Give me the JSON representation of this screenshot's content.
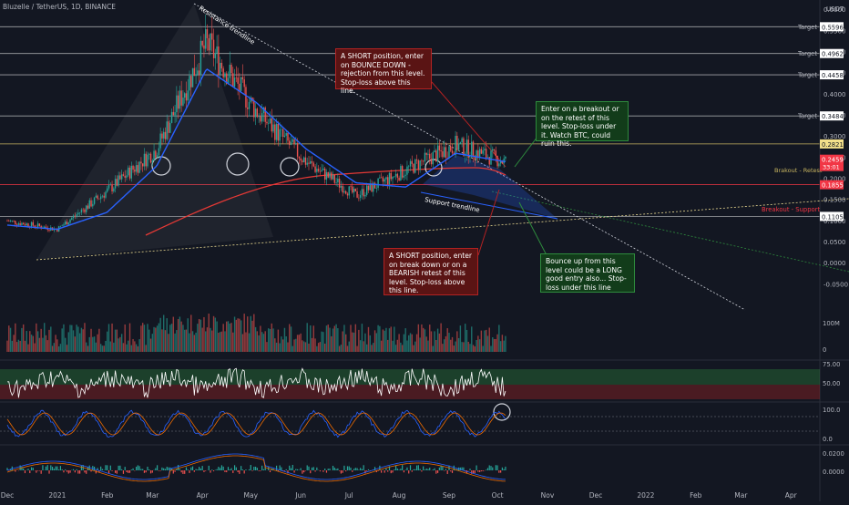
{
  "symbol_title": "Bluzelle / TetherUS, 1D, BINANCE",
  "currency": "USDT",
  "price_labels": {
    "current": "0.2459",
    "countdown": "33:01"
  },
  "colors": {
    "background": "#131722",
    "up": "#26a69a",
    "down": "#ef5350",
    "ma": "#2962ff",
    "red_level": "#f23645",
    "white": "#ffffff"
  },
  "annotations": {
    "resistance": "Resistance trendline",
    "support": "Support trendline",
    "breakout_retest": "Brakout - Retest",
    "breakout_support": "Breakout - Support",
    "note_short_top": "A SHORT position, enter on BOUNCE DOWN - rejection from this level. Stop-loss above this line.",
    "note_short_bottom": "A SHORT position, enter on break down or on a BEARISH retest of this level. Stop-loss above this line.",
    "note_long_breakout": "Enter on a breakout or on the retest of this level. Stop-loss under it. Watch BTC, could ruin this.",
    "note_long_bounce": "Bounce up from this level could be a LONG good entry also... Stop-loss under this line"
  },
  "chart_data": {
    "type": "candlestick",
    "title": "Bluzelle / TetherUS, 1D, BINANCE",
    "currency": "USDT",
    "x_tick_labels": [
      "Dec",
      "2021",
      "Feb",
      "Mar",
      "Apr",
      "May",
      "Jun",
      "Jul",
      "Aug",
      "Sep",
      "Oct",
      "Nov",
      "Dec",
      "2022",
      "Feb",
      "Mar",
      "Apr"
    ],
    "price_axis": {
      "ticks": [
        "0.6000",
        "0.5500",
        "0.5000",
        "0.4500",
        "0.4000",
        "0.3500",
        "0.3000",
        "0.2500",
        "0.2000",
        "0.1500",
        "0.1000",
        "0.0500",
        "0.0000",
        "-0.0500"
      ],
      "ylim": [
        -0.06,
        0.66
      ]
    },
    "levels": [
      {
        "label": "Target",
        "value": "0.6620"
      },
      {
        "label": "Target",
        "value": "0.5596"
      },
      {
        "label": "Target",
        "value": "0.4962"
      },
      {
        "label": "Target",
        "value": "0.4458"
      },
      {
        "label": "Target",
        "value": "0.3484"
      },
      {
        "label": "Brakout - Retest",
        "value": "0.2821"
      },
      {
        "label": "Breakout - Support",
        "value": "0.1855"
      },
      {
        "label": "",
        "value": "0.1105"
      }
    ],
    "close_series_approx": {
      "months": [
        "Dec",
        "2021",
        "Feb",
        "Mar",
        "Apr",
        "May",
        "Jun",
        "Jul",
        "Aug",
        "Sep",
        "Oct"
      ],
      "close": [
        0.1,
        0.08,
        0.17,
        0.27,
        0.52,
        0.36,
        0.24,
        0.16,
        0.22,
        0.28,
        0.24
      ]
    },
    "ma_approx": [
      0.09,
      0.08,
      0.12,
      0.23,
      0.46,
      0.38,
      0.27,
      0.19,
      0.18,
      0.26,
      0.24
    ],
    "volume_axis": {
      "ticks": [
        "100M",
        "0"
      ]
    },
    "rsi": {
      "ticks": [
        "75.00",
        "50.00"
      ],
      "upper": 75,
      "lower": 50
    },
    "stoch": {
      "ticks": [
        "100.0",
        "0.0"
      ]
    },
    "macd": {
      "ticks": [
        "0.0200",
        "0.0000"
      ]
    }
  }
}
